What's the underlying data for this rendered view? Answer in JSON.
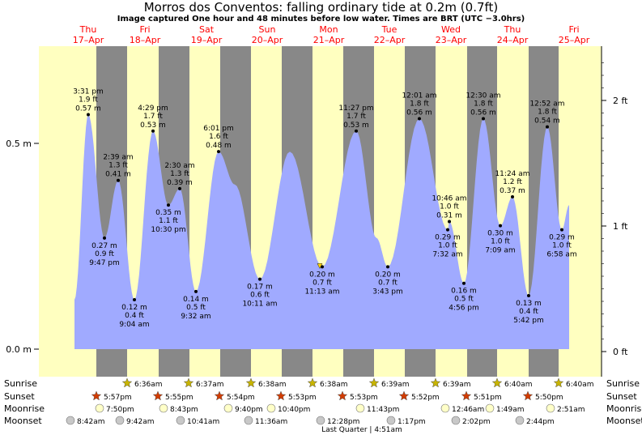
{
  "title": "Morros dos Conventos: falling  ordinary tide at 0.2m (0.7ft)",
  "subtitle": "Image captured One hour and 48 minutes before low water. Times are BRT (UTC −3.0hrs)",
  "days": [
    {
      "dow": "Thu",
      "date": "17–Apr"
    },
    {
      "dow": "Fri",
      "date": "18–Apr"
    },
    {
      "dow": "Sat",
      "date": "19–Apr"
    },
    {
      "dow": "Sun",
      "date": "20–Apr"
    },
    {
      "dow": "Mon",
      "date": "21–Apr"
    },
    {
      "dow": "Tue",
      "date": "22–Apr"
    },
    {
      "dow": "Wed",
      "date": "23–Apr"
    },
    {
      "dow": "Thu",
      "date": "24–Apr"
    },
    {
      "dow": "Fri",
      "date": "25–Apr"
    }
  ],
  "colors": {
    "day": "#ffffc0",
    "night": "#888888",
    "water": "#a0aaff",
    "day_label": "#ff0000",
    "sun_star": "#c8b400",
    "sunset_star": "#d23c00",
    "moonrise": "#ffffc8",
    "moonset": "#c8c8c8",
    "marker": "#000000"
  },
  "chart_data": {
    "type": "area",
    "left_axis": {
      "ticks": [
        {
          "value": 0.0,
          "label": "0.0 m"
        },
        {
          "value": 0.5,
          "label": "0.5 m"
        }
      ]
    },
    "right_axis": {
      "ticks": [
        {
          "value": 0,
          "label": "0 ft"
        },
        {
          "value": 1,
          "label": "1 ft"
        },
        {
          "value": 2,
          "label": "2 ft"
        }
      ]
    },
    "current_level": {
      "m": 0.2,
      "ft": 0.7
    },
    "tides": [
      {
        "time": "3:31 pm",
        "ft": "1.9 ft",
        "m_label": "0.57 m",
        "m": 0.57,
        "type": "high"
      },
      {
        "time": "9:47 pm",
        "ft": "0.9 ft",
        "m_label": "0.27 m",
        "m": 0.27,
        "type": "low"
      },
      {
        "time": "2:39 am",
        "ft": "1.3 ft",
        "m_label": "0.41 m",
        "m": 0.41,
        "type": "high"
      },
      {
        "time": "9:04 am",
        "ft": "0.4 ft",
        "m_label": "0.12 m",
        "m": 0.12,
        "type": "low"
      },
      {
        "time": "4:29 pm",
        "ft": "1.7 ft",
        "m_label": "0.53 m",
        "m": 0.53,
        "type": "high"
      },
      {
        "time": "10:30 pm",
        "ft": "1.1 ft",
        "m_label": "0.35 m",
        "m": 0.35,
        "type": "low"
      },
      {
        "time": "2:30 am",
        "ft": "1.3 ft",
        "m_label": "0.39 m",
        "m": 0.39,
        "type": "high"
      },
      {
        "time": "9:32 am",
        "ft": "0.5 ft",
        "m_label": "0.14 m",
        "m": 0.14,
        "type": "low"
      },
      {
        "time": "6:01 pm",
        "ft": "1.6 ft",
        "m_label": "0.48 m",
        "m": 0.48,
        "type": "high"
      },
      {
        "time": "10:11 am",
        "ft": "0.6 ft",
        "m_label": "0.17 m",
        "m": 0.17,
        "type": "low"
      },
      {
        "time": "11:13 am",
        "ft": "0.7 ft",
        "m_label": "0.20 m",
        "m": 0.2,
        "type": "low"
      },
      {
        "time": "11:27 pm",
        "ft": "1.7 ft",
        "m_label": "0.53 m",
        "m": 0.53,
        "type": "high"
      },
      {
        "time": "3:43 pm",
        "ft": "0.7 ft",
        "m_label": "0.20 m",
        "m": 0.2,
        "type": "low"
      },
      {
        "time": "12:01 am",
        "ft": "1.8 ft",
        "m_label": "0.56 m",
        "m": 0.56,
        "type": "high"
      },
      {
        "time": "7:32 am",
        "ft": "1.0 ft",
        "m_label": "0.29 m",
        "m": 0.29,
        "type": "low"
      },
      {
        "time": "10:46 am",
        "ft": "1.0 ft",
        "m_label": "0.31 m",
        "m": 0.31,
        "type": "high"
      },
      {
        "time": "4:56 pm",
        "ft": "0.5 ft",
        "m_label": "0.16 m",
        "m": 0.16,
        "type": "low"
      },
      {
        "time": "12:30 am",
        "ft": "1.8 ft",
        "m_label": "0.56 m",
        "m": 0.56,
        "type": "high"
      },
      {
        "time": "7:09 am",
        "ft": "1.0 ft",
        "m_label": "0.30 m",
        "m": 0.3,
        "type": "low"
      },
      {
        "time": "11:24 am",
        "ft": "1.2 ft",
        "m_label": "0.37 m",
        "m": 0.37,
        "type": "high"
      },
      {
        "time": "5:42 pm",
        "ft": "0.4 ft",
        "m_label": "0.13 m",
        "m": 0.13,
        "type": "low"
      },
      {
        "time": "12:52 am",
        "ft": "1.8 ft",
        "m_label": "0.54 m",
        "m": 0.54,
        "type": "high"
      },
      {
        "time": "6:58 am",
        "ft": "1.0 ft",
        "m_label": "0.29 m",
        "m": 0.29,
        "type": "low"
      }
    ]
  },
  "astro": {
    "row_labels": [
      "Sunrise",
      "Sunset",
      "Moonrise",
      "Moonset"
    ],
    "sunrise": [
      "6:36am",
      "6:37am",
      "6:38am",
      "6:38am",
      "6:39am",
      "6:39am",
      "6:40am",
      "6:40am"
    ],
    "sunset": [
      "5:57pm",
      "5:55pm",
      "5:54pm",
      "5:53pm",
      "5:53pm",
      "5:52pm",
      "5:51pm",
      "5:50pm"
    ],
    "moonrise": [
      "7:50pm",
      "8:43pm",
      "9:40pm",
      "10:40pm",
      "11:43pm",
      "12:46am",
      "1:49am",
      "2:51am"
    ],
    "moonset": [
      "8:42am",
      "9:42am",
      "10:41am",
      "11:36am",
      "12:28pm",
      "1:17pm",
      "2:02pm",
      "2:44pm"
    ],
    "moon_phase": "Last Quarter | 4:51am"
  }
}
